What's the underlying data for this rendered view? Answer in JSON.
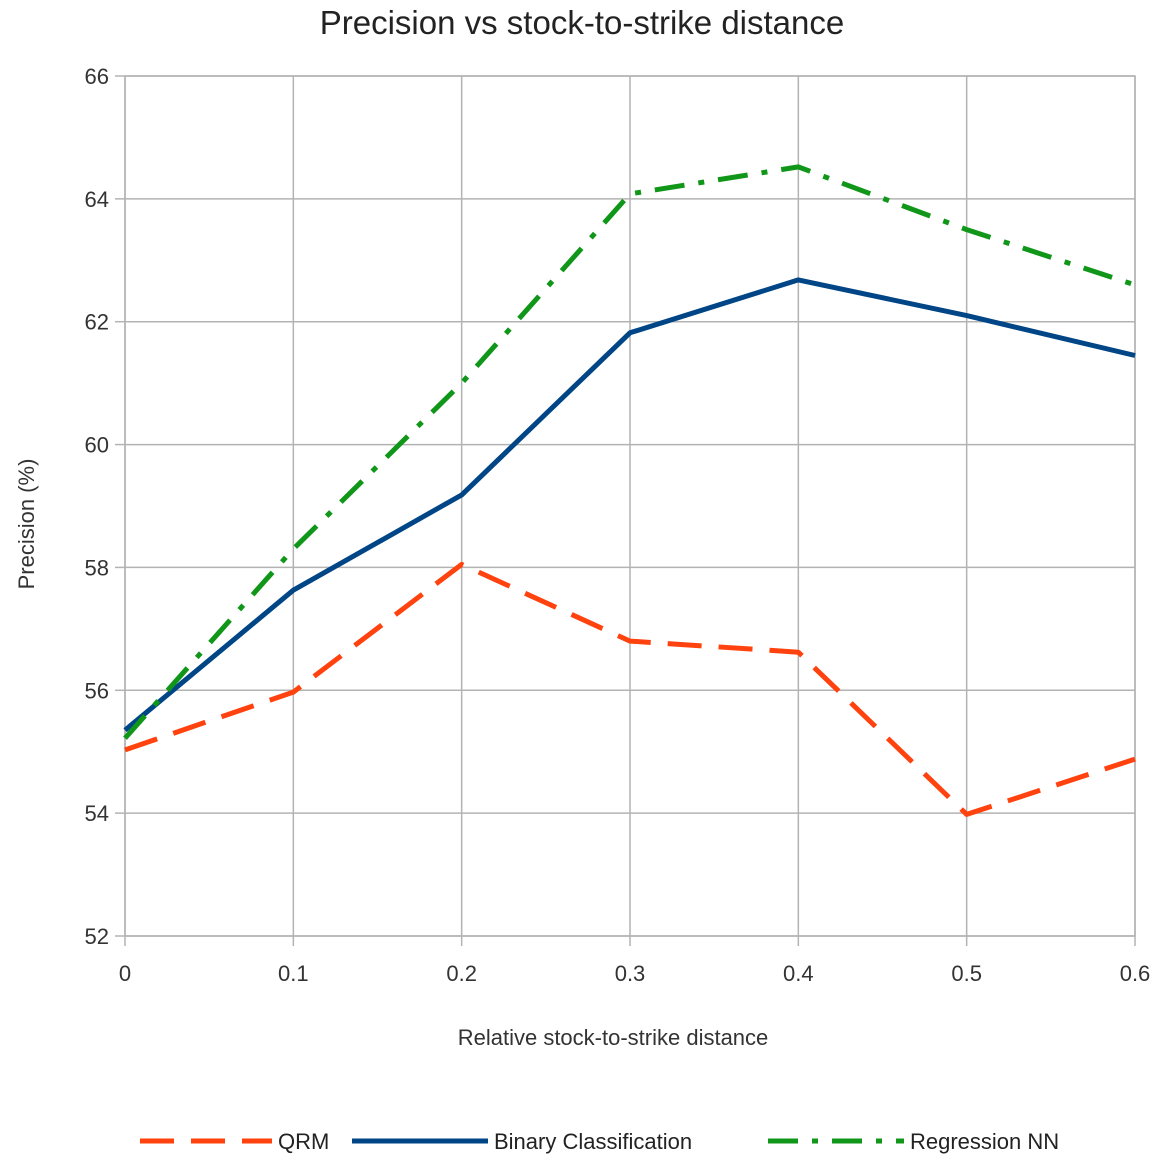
{
  "chart_data": {
    "type": "line",
    "title": "Precision vs stock-to-strike distance",
    "xlabel": "Relative stock-to-strike distance",
    "ylabel": "Precision (%)",
    "x": [
      0,
      0.1,
      0.2,
      0.3,
      0.4,
      0.5,
      0.6
    ],
    "x_ticks": [
      "0",
      "0.1",
      "0.2",
      "0.3",
      "0.4",
      "0.5",
      "0.6"
    ],
    "y_ticks": [
      "52",
      "54",
      "56",
      "58",
      "60",
      "62",
      "64",
      "66"
    ],
    "xlim": [
      0,
      0.6
    ],
    "ylim": [
      52,
      66
    ],
    "grid": true,
    "legend_position": "bottom",
    "series": [
      {
        "name": "QRM",
        "values": [
          55.03,
          55.97,
          58.05,
          56.8,
          56.62,
          53.98,
          54.88
        ],
        "color": "#ff420e",
        "style": "dashed"
      },
      {
        "name": "Binary Classification",
        "values": [
          55.35,
          57.63,
          59.18,
          61.82,
          62.68,
          62.1,
          61.45
        ],
        "color": "#004586",
        "style": "solid"
      },
      {
        "name": "Regression NN",
        "values": [
          55.22,
          58.3,
          61.0,
          64.08,
          64.52,
          63.5,
          62.6
        ],
        "color": "#109618",
        "style": "dash-dot"
      }
    ]
  }
}
